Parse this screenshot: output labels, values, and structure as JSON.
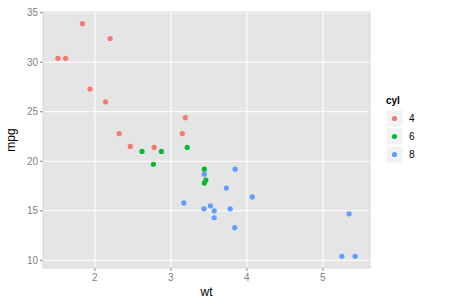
{
  "chart_data": {
    "type": "scatter",
    "x_label": "wt",
    "y_label": "mpg",
    "legend_title": "cyl",
    "xlim": [
      1.317,
      5.62
    ],
    "ylim": [
      9.225,
      35.075
    ],
    "xticks": [
      2,
      3,
      4,
      5
    ],
    "yticks": [
      10,
      15,
      20,
      25,
      30,
      35
    ],
    "grid": true,
    "legend": "right",
    "marker": "circle",
    "series": [
      {
        "name": "4",
        "color": "#F8766D",
        "x": [
          2.32,
          3.19,
          3.15,
          2.2,
          1.615,
          1.835,
          2.465,
          1.935,
          2.14,
          1.513,
          2.78
        ],
        "values": [
          22.8,
          24.4,
          22.8,
          32.4,
          30.4,
          33.9,
          21.5,
          27.3,
          26.0,
          30.4,
          21.4
        ]
      },
      {
        "name": "6",
        "color": "#00BA38",
        "x": [
          2.62,
          2.875,
          3.215,
          3.46,
          3.44,
          3.44,
          2.77
        ],
        "values": [
          21.0,
          21.0,
          21.4,
          18.1,
          19.2,
          17.8,
          19.7
        ]
      },
      {
        "name": "8",
        "color": "#619CFF",
        "x": [
          3.44,
          3.57,
          4.07,
          3.73,
          3.78,
          5.25,
          5.424,
          5.345,
          3.52,
          3.435,
          3.84,
          3.845,
          3.17,
          3.57
        ],
        "values": [
          18.7,
          14.3,
          16.4,
          17.3,
          15.2,
          10.4,
          10.4,
          14.7,
          15.5,
          15.2,
          13.3,
          19.2,
          15.8,
          15.0
        ]
      }
    ]
  }
}
